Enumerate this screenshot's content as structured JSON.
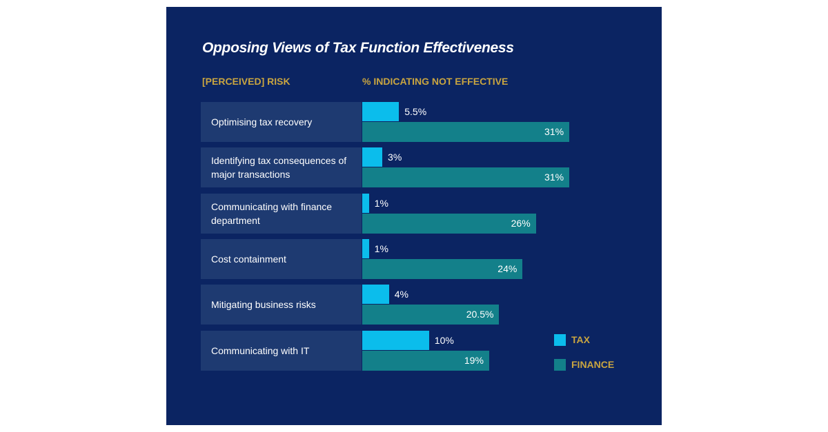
{
  "chart_data": {
    "type": "bar",
    "orientation": "horizontal",
    "title": "Opposing Views of Tax Function Effectiveness",
    "category_header": "[PERCEIVED] RISK",
    "value_header": "% INDICATING NOT EFFECTIVE",
    "categories": [
      "Optimising tax recovery",
      "Identifying tax consequences of major transactions",
      "Communicating with finance department",
      "Cost containment",
      "Mitigating business risks",
      "Communicating with IT"
    ],
    "series": [
      {
        "name": "TAX",
        "color": "#0bbdec",
        "values": [
          5.5,
          3,
          1,
          1,
          4,
          10
        ],
        "labels": [
          "5.5%",
          "3%",
          "1%",
          "1%",
          "4%",
          "10%"
        ]
      },
      {
        "name": "FINANCE",
        "color": "#13808a",
        "values": [
          31,
          31,
          26,
          24,
          20.5,
          19
        ],
        "labels": [
          "31%",
          "31%",
          "26%",
          "24%",
          "20.5%",
          "19%"
        ]
      }
    ],
    "legend": "bottom-right",
    "grid": false
  }
}
